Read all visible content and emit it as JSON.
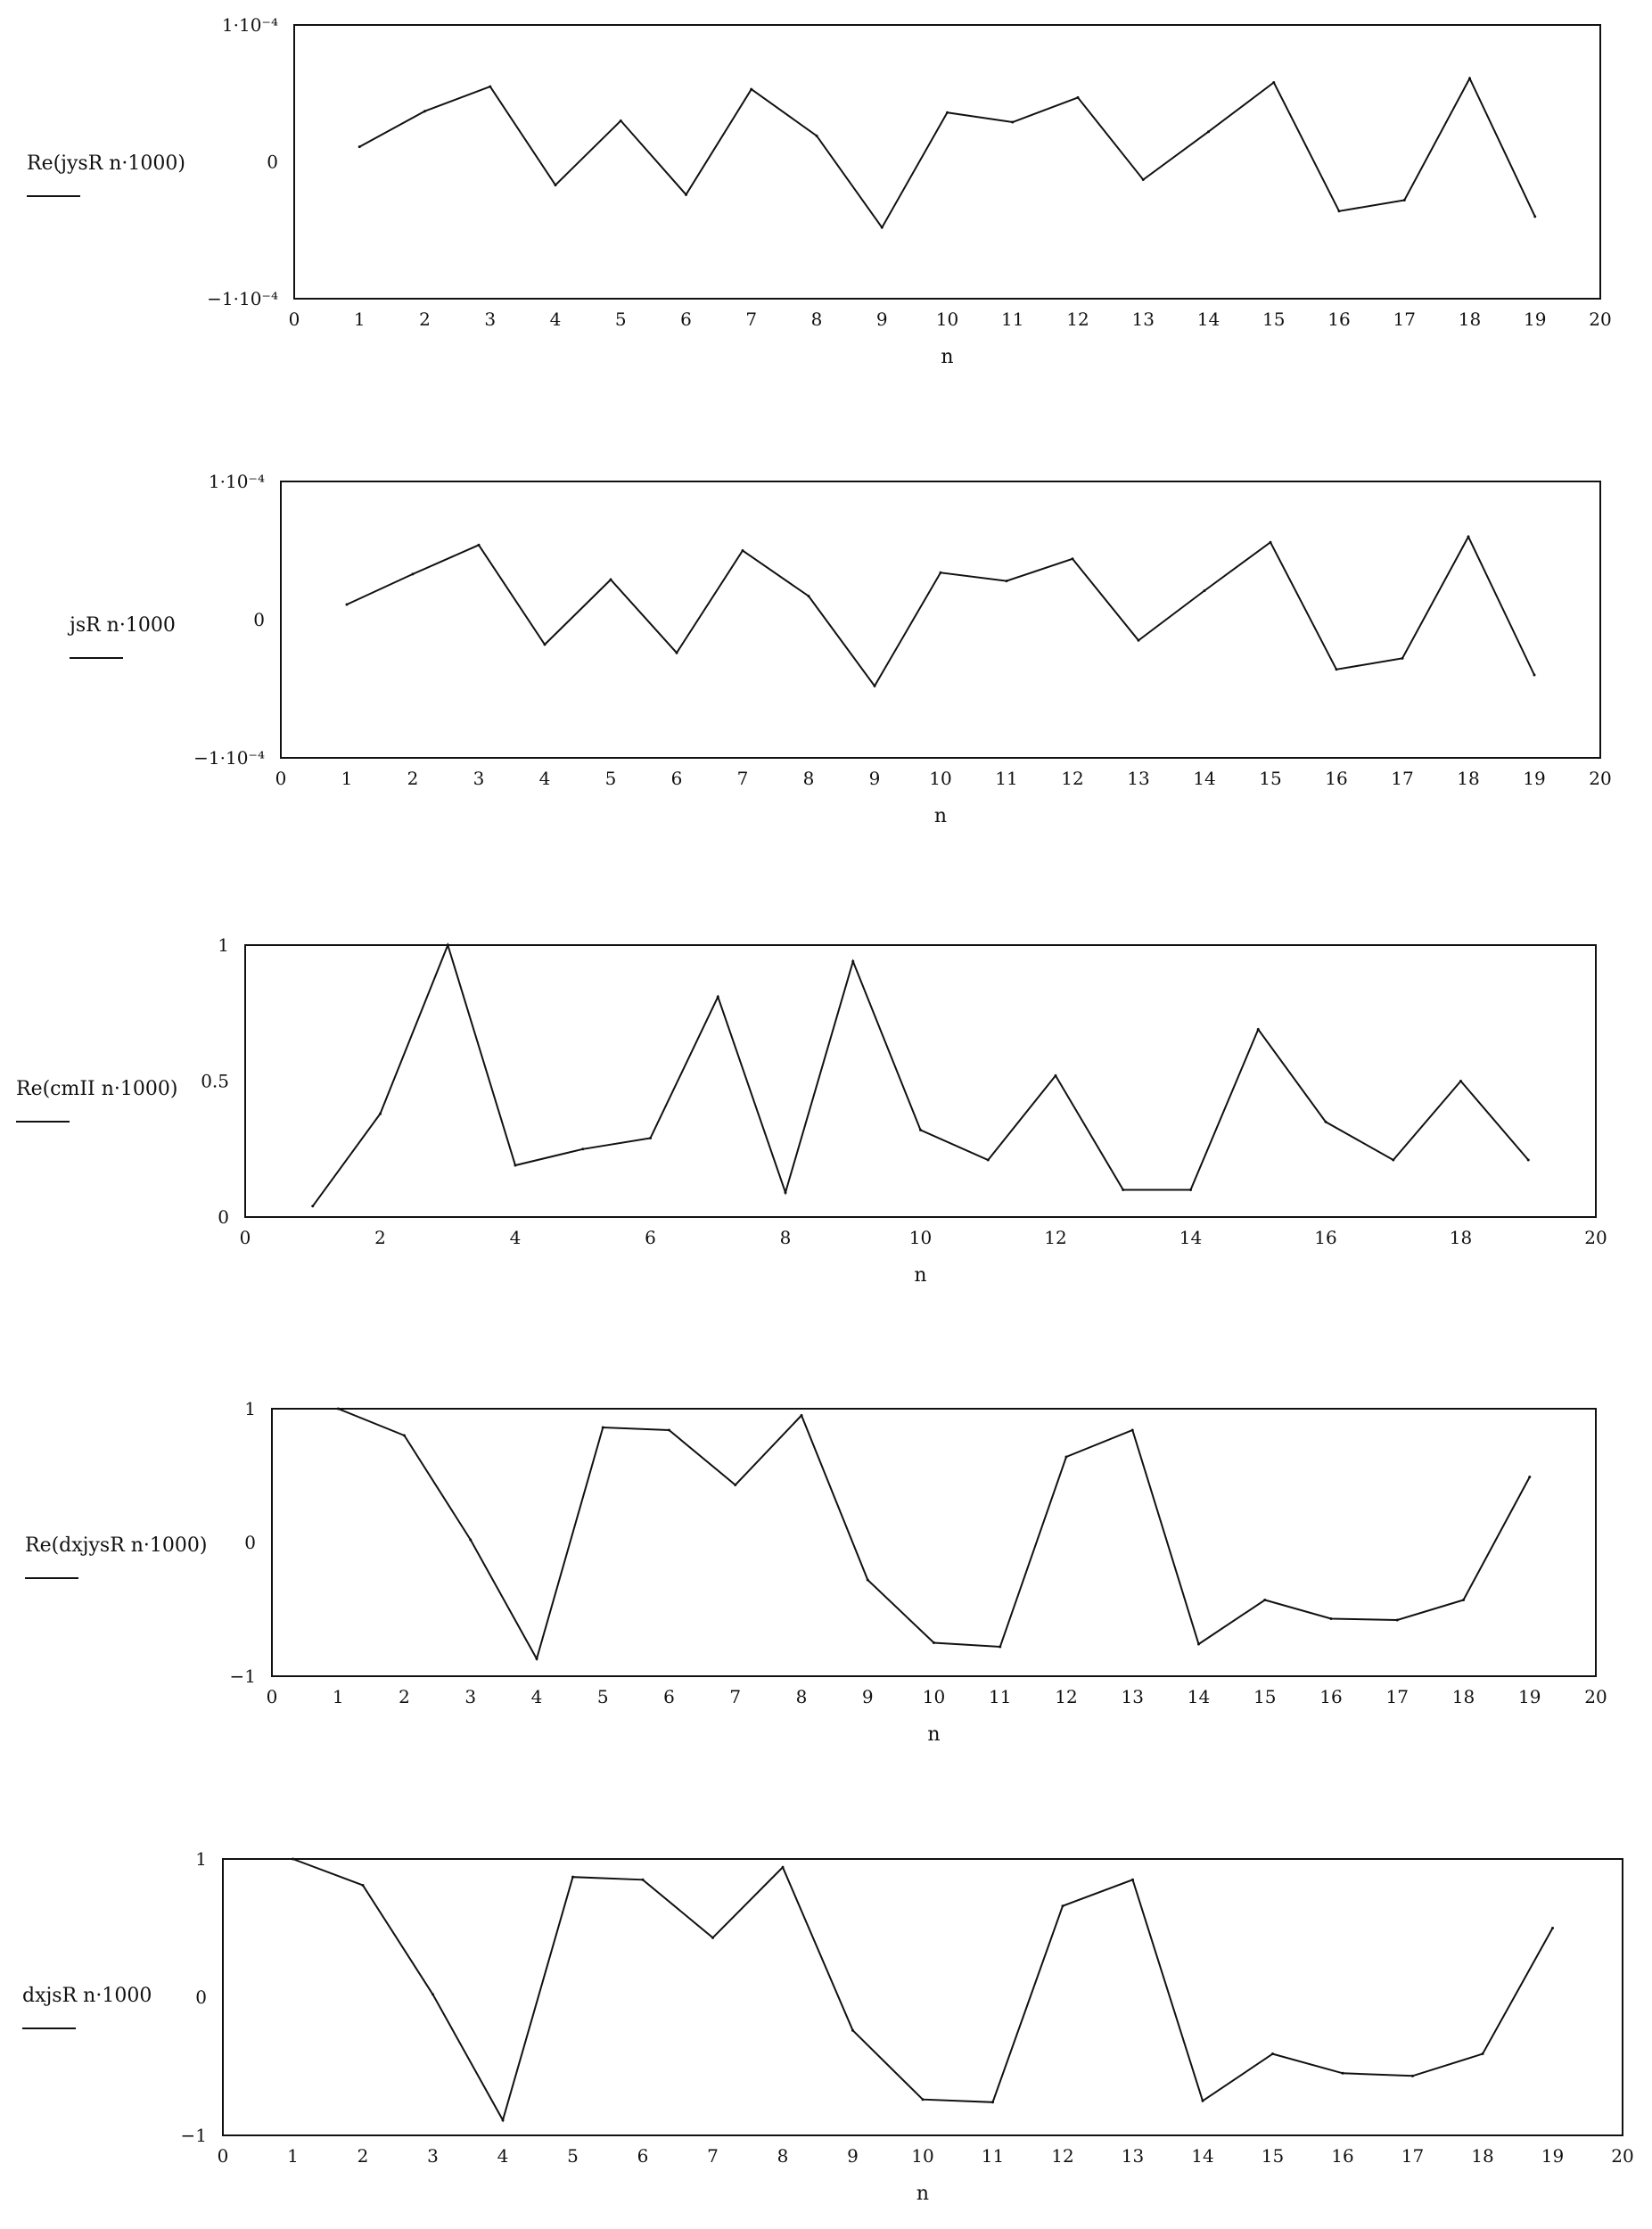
{
  "chart_data": [
    {
      "type": "line",
      "ylabel": "Re(jysR n·1000)",
      "xlabel": "n",
      "xlim": [
        0,
        20
      ],
      "ylim": [
        -0.0001,
        0.0001
      ],
      "xticks": [
        0,
        1,
        2,
        3,
        4,
        5,
        6,
        7,
        8,
        9,
        10,
        11,
        12,
        13,
        14,
        15,
        16,
        17,
        18,
        19,
        20
      ],
      "yticks": [
        {
          "value": 0.0001,
          "label": "1·10⁻⁴"
        },
        {
          "value": 0,
          "label": "0"
        },
        {
          "value": -0.0001,
          "label": "−1·10⁻⁴"
        }
      ],
      "x": [
        1,
        2,
        3,
        4,
        5,
        6,
        7,
        8,
        9,
        10,
        11,
        12,
        13,
        14,
        15,
        16,
        17,
        18,
        19
      ],
      "values": [
        1.1e-05,
        3.7e-05,
        5.5e-05,
        -1.7e-05,
        3e-05,
        -2.4e-05,
        5.3e-05,
        1.9e-05,
        -4.8e-05,
        3.6e-05,
        2.9e-05,
        4.7e-05,
        -1.3e-05,
        2.2e-05,
        5.8e-05,
        -3.6e-05,
        -2.8e-05,
        6.1e-05,
        -4e-05
      ]
    },
    {
      "type": "line",
      "ylabel": "jsR n·1000",
      "xlabel": "n",
      "xlim": [
        0,
        20
      ],
      "ylim": [
        -0.0001,
        0.0001
      ],
      "xticks": [
        0,
        1,
        2,
        3,
        4,
        5,
        6,
        7,
        8,
        9,
        10,
        11,
        12,
        13,
        14,
        15,
        16,
        17,
        18,
        19,
        20
      ],
      "yticks": [
        {
          "value": 0.0001,
          "label": "1·10⁻⁴"
        },
        {
          "value": 0,
          "label": "0"
        },
        {
          "value": -0.0001,
          "label": "−1·10⁻⁴"
        }
      ],
      "x": [
        1,
        2,
        3,
        4,
        5,
        6,
        7,
        8,
        9,
        10,
        11,
        12,
        13,
        14,
        15,
        16,
        17,
        18,
        19
      ],
      "values": [
        1.1e-05,
        3.3e-05,
        5.4e-05,
        -1.8e-05,
        2.9e-05,
        -2.4e-05,
        5e-05,
        1.7e-05,
        -4.8e-05,
        3.4e-05,
        2.8e-05,
        4.4e-05,
        -1.5e-05,
        2.1e-05,
        5.6e-05,
        -3.6e-05,
        -2.8e-05,
        6e-05,
        -4e-05
      ]
    },
    {
      "type": "line",
      "ylabel": "Re(cmII n·1000)",
      "xlabel": "n",
      "xlim": [
        0,
        20
      ],
      "ylim": [
        0,
        1
      ],
      "xticks": [
        0,
        2,
        4,
        6,
        8,
        10,
        12,
        14,
        16,
        18,
        20
      ],
      "yticks": [
        {
          "value": 1,
          "label": "1"
        },
        {
          "value": 0.5,
          "label": "0.5"
        },
        {
          "value": 0,
          "label": "0"
        }
      ],
      "x": [
        1,
        2,
        3,
        4,
        5,
        6,
        7,
        8,
        9,
        10,
        11,
        12,
        13,
        14,
        15,
        16,
        17,
        18,
        19
      ],
      "values": [
        0.04,
        0.38,
        1.0,
        0.19,
        0.25,
        0.29,
        0.81,
        0.09,
        0.94,
        0.32,
        0.21,
        0.52,
        0.1,
        0.1,
        0.69,
        0.35,
        0.21,
        0.5,
        0.21
      ]
    },
    {
      "type": "line",
      "ylabel": "Re(dxjysR n·1000)",
      "xlabel": "n",
      "xlim": [
        0,
        20
      ],
      "ylim": [
        -1,
        1
      ],
      "xticks": [
        0,
        1,
        2,
        3,
        4,
        5,
        6,
        7,
        8,
        9,
        10,
        11,
        12,
        13,
        14,
        15,
        16,
        17,
        18,
        19,
        20
      ],
      "yticks": [
        {
          "value": 1,
          "label": "1"
        },
        {
          "value": 0,
          "label": "0"
        },
        {
          "value": -1,
          "label": "−1"
        }
      ],
      "x": [
        1,
        2,
        3,
        4,
        5,
        6,
        7,
        8,
        9,
        10,
        11,
        12,
        13,
        14,
        15,
        16,
        17,
        18,
        19
      ],
      "values": [
        1.0,
        0.8,
        0.02,
        -0.87,
        0.86,
        0.84,
        0.43,
        0.95,
        -0.28,
        -0.75,
        -0.78,
        0.64,
        0.84,
        -0.76,
        -0.43,
        -0.57,
        -0.58,
        -0.43,
        0.49
      ]
    },
    {
      "type": "line",
      "ylabel": "dxjsR n·1000",
      "xlabel": "n",
      "xlim": [
        0,
        20
      ],
      "ylim": [
        -1,
        1
      ],
      "xticks": [
        0,
        1,
        2,
        3,
        4,
        5,
        6,
        7,
        8,
        9,
        10,
        11,
        12,
        13,
        14,
        15,
        16,
        17,
        18,
        19,
        20
      ],
      "yticks": [
        {
          "value": 1,
          "label": "1"
        },
        {
          "value": 0,
          "label": "0"
        },
        {
          "value": -1,
          "label": "−1"
        }
      ],
      "x": [
        1,
        2,
        3,
        4,
        5,
        6,
        7,
        8,
        9,
        10,
        11,
        12,
        13,
        14,
        15,
        16,
        17,
        18,
        19
      ],
      "values": [
        1.0,
        0.81,
        0.02,
        -0.89,
        0.87,
        0.85,
        0.43,
        0.94,
        -0.24,
        -0.74,
        -0.76,
        0.66,
        0.85,
        -0.75,
        -0.41,
        -0.55,
        -0.57,
        -0.41,
        0.5
      ]
    }
  ]
}
